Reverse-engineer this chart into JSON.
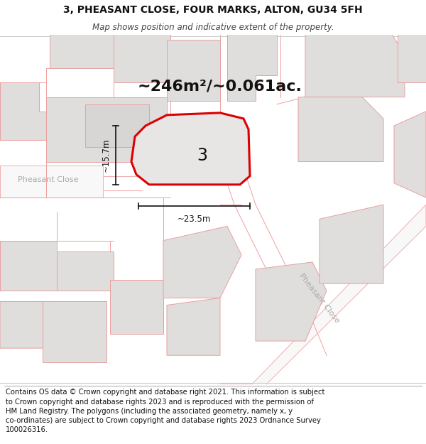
{
  "title_line1": "3, PHEASANT CLOSE, FOUR MARKS, ALTON, GU34 5FH",
  "title_line2": "Map shows position and indicative extent of the property.",
  "area_text": "~246m²/~0.061ac.",
  "label_number": "3",
  "dim_width": "~23.5m",
  "dim_height": "~15.7m",
  "road_label_left": "Pheasant Close",
  "road_label_bottom": "Pheasant Close",
  "footer": "Contains OS data © Crown copyright and database right 2021. This information is subject to Crown copyright and database rights 2023 and is reproduced with the permission of HM Land Registry. The polygons (including the associated geometry, namely x, y co-ordinates) are subject to Crown copyright and database rights 2023 Ordnance Survey 100026316.",
  "map_bg": "#f5f5f5",
  "plot_fill": "#e8e6e4",
  "plot_stroke": "#dd0000",
  "building_fill": "#e0dedd",
  "building_stroke": "#e8a0a0",
  "road_line_color": "#f0b0b0",
  "dim_color": "#111111",
  "footer_fontsize": 7.2,
  "title_fontsize": 10,
  "subtitle_fontsize": 8.5,
  "area_fontsize": 16,
  "label_fontsize": 17
}
